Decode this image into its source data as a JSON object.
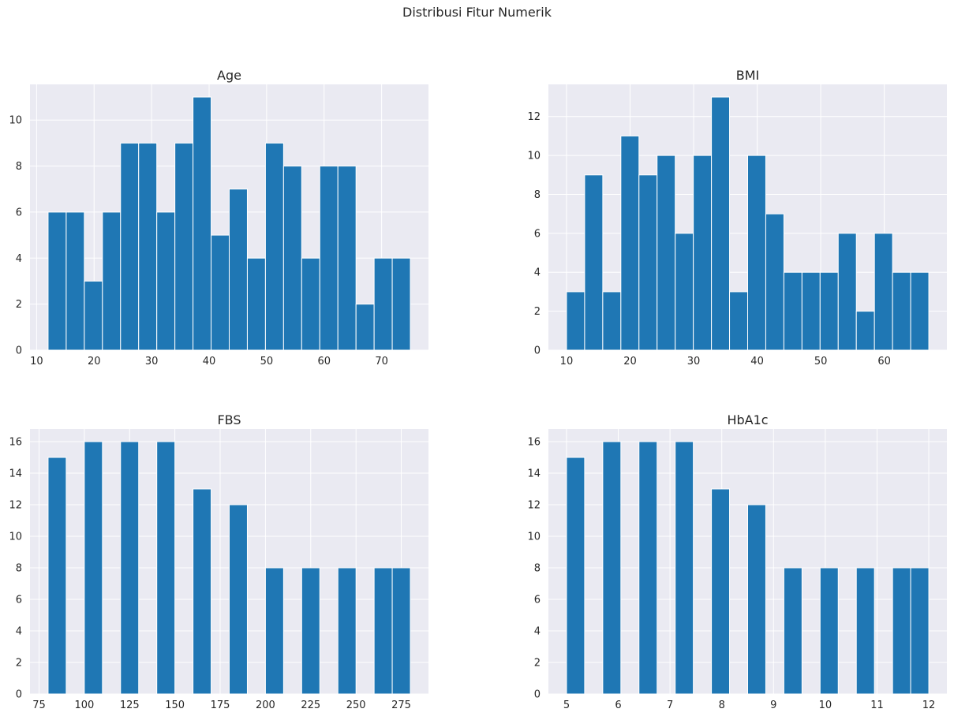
{
  "figure": {
    "suptitle": "Distribusi Fitur Numerik"
  },
  "colors": {
    "background": "#eaeaf2",
    "grid": "#ffffff",
    "bar": "#1f77b4",
    "bar_edge": "#ffffff",
    "text": "#262626"
  },
  "chart_data": [
    {
      "type": "bar",
      "title": "Age",
      "xlabel": "",
      "ylabel": "",
      "grid": true,
      "xlim": [
        8.85,
        78.15
      ],
      "ylim": [
        0,
        11.55
      ],
      "xticks": [
        10,
        20,
        30,
        40,
        50,
        60,
        70
      ],
      "yticks": [
        0,
        2,
        4,
        6,
        8,
        10
      ],
      "bin_edges": [
        12,
        15.15,
        18.3,
        21.45,
        24.6,
        27.75,
        30.9,
        34.05,
        37.2,
        40.35,
        43.5,
        46.65,
        49.8,
        52.95,
        56.1,
        59.25,
        62.4,
        65.55,
        68.7,
        71.85,
        75
      ],
      "values": [
        6,
        6,
        3,
        6,
        9,
        9,
        6,
        9,
        11,
        5,
        7,
        4,
        9,
        8,
        4,
        8,
        8,
        2,
        4,
        4
      ]
    },
    {
      "type": "bar",
      "title": "BMI",
      "xlabel": "",
      "ylabel": "",
      "grid": true,
      "xlim": [
        7.15,
        69.85
      ],
      "ylim": [
        0,
        13.65
      ],
      "xticks": [
        10,
        20,
        30,
        40,
        50,
        60
      ],
      "yticks": [
        0,
        2,
        4,
        6,
        8,
        10,
        12
      ],
      "bin_edges": [
        10,
        12.85,
        15.7,
        18.55,
        21.4,
        24.25,
        27.1,
        29.95,
        32.8,
        35.65,
        38.5,
        41.35,
        44.2,
        47.05,
        49.9,
        52.75,
        55.6,
        58.45,
        61.3,
        64.15,
        67
      ],
      "values": [
        3,
        9,
        3,
        11,
        9,
        10,
        6,
        10,
        13,
        3,
        10,
        7,
        4,
        4,
        4,
        6,
        2,
        6,
        4,
        4
      ]
    },
    {
      "type": "bar",
      "title": "FBS",
      "xlabel": "",
      "ylabel": "",
      "grid": true,
      "xlim": [
        70,
        290
      ],
      "ylim": [
        0,
        16.8
      ],
      "xticks": [
        75,
        100,
        125,
        150,
        175,
        200,
        225,
        250,
        275
      ],
      "yticks": [
        0,
        2,
        4,
        6,
        8,
        10,
        12,
        14,
        16
      ],
      "bin_edges": [
        80,
        90,
        100,
        110,
        120,
        130,
        140,
        150,
        160,
        170,
        180,
        190,
        200,
        210,
        220,
        230,
        240,
        250,
        260,
        270,
        280
      ],
      "values": [
        15,
        0,
        16,
        0,
        16,
        0,
        16,
        0,
        13,
        0,
        12,
        0,
        8,
        0,
        8,
        0,
        8,
        0,
        8,
        8
      ]
    },
    {
      "type": "bar",
      "title": "HbA1c",
      "xlabel": "",
      "ylabel": "",
      "grid": true,
      "xlim": [
        4.65,
        12.35
      ],
      "ylim": [
        0,
        16.8
      ],
      "xticks": [
        5,
        6,
        7,
        8,
        9,
        10,
        11,
        12
      ],
      "yticks": [
        0,
        2,
        4,
        6,
        8,
        10,
        12,
        14,
        16
      ],
      "bin_edges": [
        5,
        5.35,
        5.7,
        6.05,
        6.4,
        6.75,
        7.1,
        7.45,
        7.8,
        8.15,
        8.5,
        8.85,
        9.2,
        9.55,
        9.9,
        10.25,
        10.6,
        10.95,
        11.3,
        11.65,
        12
      ],
      "values": [
        15,
        0,
        16,
        0,
        16,
        0,
        16,
        0,
        13,
        0,
        12,
        0,
        8,
        0,
        8,
        0,
        8,
        0,
        8,
        8
      ]
    }
  ]
}
